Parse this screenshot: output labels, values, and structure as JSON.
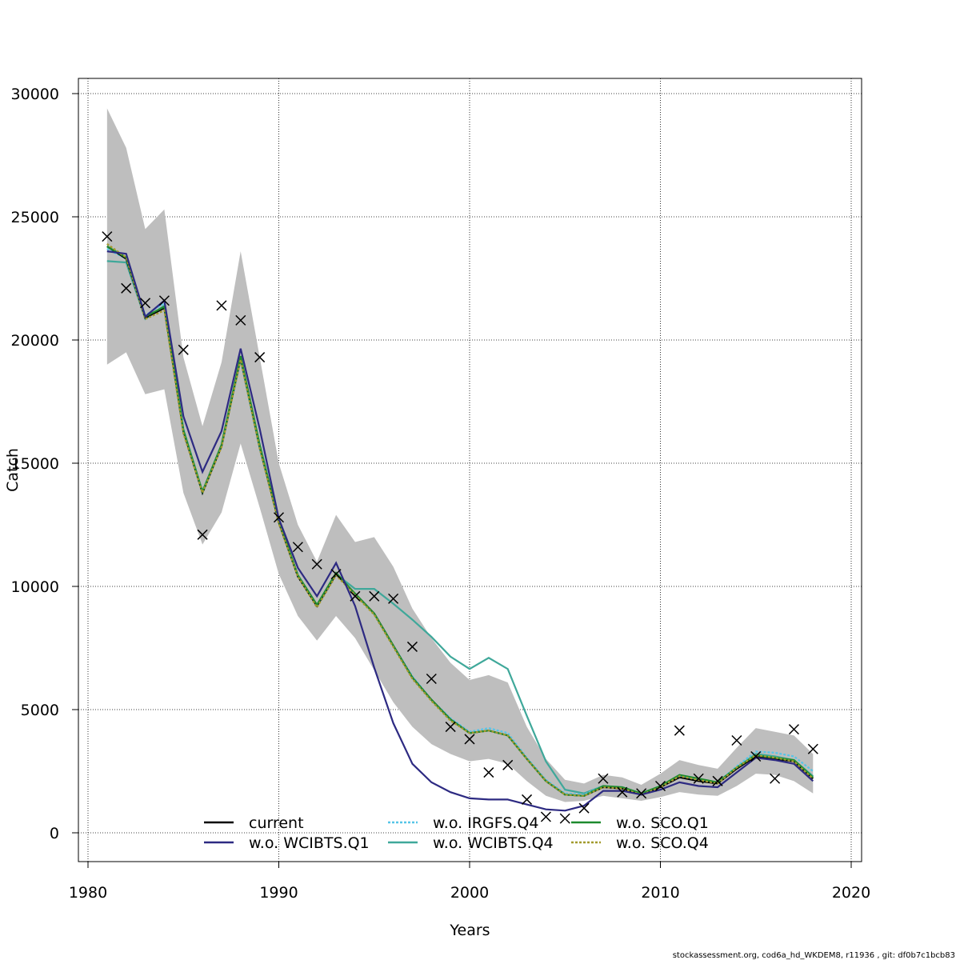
{
  "chart_data": {
    "type": "line",
    "xlabel": "Years",
    "ylabel": "Catch",
    "xlim": [
      1979.5,
      2020.5
    ],
    "ylim": [
      -1200,
      30600
    ],
    "x_ticks": [
      1980,
      1990,
      2000,
      2010,
      2020
    ],
    "y_ticks": [
      0,
      5000,
      10000,
      15000,
      20000,
      25000,
      30000
    ],
    "x_tick_labels": [
      "1980",
      "1990",
      "2000",
      "2010",
      "2020"
    ],
    "y_tick_labels": [
      "0",
      "5000",
      "10000",
      "15000",
      "20000",
      "25000",
      "30000"
    ],
    "grid": true,
    "grid_color": "#000000",
    "band_color": "#bebebe",
    "legend_position": "bottom",
    "years": [
      1981,
      1982,
      1983,
      1984,
      1985,
      1986,
      1987,
      1988,
      1989,
      1990,
      1991,
      1992,
      1993,
      1994,
      1995,
      1996,
      1997,
      1998,
      1999,
      2000,
      2001,
      2002,
      2003,
      2004,
      2005,
      2006,
      2007,
      2008,
      2009,
      2010,
      2011,
      2012,
      2013,
      2014,
      2015,
      2016,
      2017,
      2018
    ],
    "confidence_band": {
      "lower": [
        19000,
        19500,
        17800,
        18000,
        13800,
        11700,
        13000,
        15800,
        13200,
        10500,
        8800,
        7800,
        8800,
        7900,
        6600,
        5300,
        4300,
        3600,
        3200,
        2900,
        3000,
        2800,
        2100,
        1500,
        1250,
        1300,
        1500,
        1400,
        1300,
        1450,
        1650,
        1550,
        1500,
        1900,
        2400,
        2350,
        2100,
        1600
      ],
      "upper": [
        29400,
        27800,
        24500,
        25300,
        19300,
        16500,
        19100,
        23600,
        19300,
        15000,
        12500,
        11000,
        12900,
        11800,
        12000,
        10800,
        9100,
        7900,
        6900,
        6200,
        6400,
        6100,
        4300,
        3000,
        2150,
        2000,
        2350,
        2250,
        1950,
        2400,
        2950,
        2750,
        2600,
        3450,
        4250,
        4100,
        3950,
        3200
      ]
    },
    "observations": {
      "name": "",
      "marker": "x",
      "x": [
        1981,
        1982,
        1983,
        1984,
        1985,
        1986,
        1987,
        1988,
        1989,
        1990,
        1991,
        1992,
        1993,
        1994,
        1995,
        1996,
        1997,
        1998,
        1999,
        2000,
        2001,
        2002,
        2003,
        2004,
        2005,
        2006,
        2007,
        2008,
        2009,
        2010,
        2011,
        2012,
        2013,
        2014,
        2015,
        2016,
        2017,
        2018
      ],
      "y": [
        24200,
        22100,
        21500,
        21600,
        19600,
        12100,
        21400,
        20800,
        19300,
        12800,
        11600,
        10900,
        10500,
        9600,
        9600,
        9500,
        7550,
        6250,
        4300,
        3800,
        2450,
        2750,
        1350,
        650,
        580,
        1000,
        2200,
        1650,
        1600,
        1900,
        4150,
        2200,
        2100,
        3750,
        3100,
        2200,
        4200,
        3400
      ]
    },
    "series": [
      {
        "name": "current",
        "color": "#000000",
        "dash": "solid",
        "values": [
          23800,
          23300,
          20900,
          21300,
          16300,
          13800,
          15700,
          19300,
          15700,
          12600,
          10400,
          9200,
          10500,
          9700,
          8900,
          7600,
          6300,
          5400,
          4600,
          4050,
          4150,
          3950,
          3000,
          2100,
          1550,
          1500,
          1850,
          1800,
          1550,
          1850,
          2250,
          2100,
          2000,
          2600,
          3100,
          3000,
          2900,
          2200
        ]
      },
      {
        "name": "w.o. WCIBTS.Q1",
        "color": "#2d2a82",
        "dash": "solid",
        "values": [
          23600,
          23500,
          20950,
          21600,
          16900,
          14650,
          16300,
          19650,
          16400,
          12750,
          10750,
          9600,
          10950,
          9200,
          6700,
          4450,
          2800,
          2050,
          1650,
          1400,
          1350,
          1350,
          1150,
          950,
          900,
          1100,
          1700,
          1700,
          1550,
          1750,
          2050,
          1900,
          1850,
          2450,
          3050,
          2950,
          2800,
          2100
        ]
      },
      {
        "name": "w.o. IRGFS.Q4",
        "color": "#56c5e8",
        "dash": "dotted",
        "values": [
          23700,
          23300,
          21000,
          21500,
          16400,
          13850,
          15750,
          19300,
          15800,
          12650,
          10450,
          9200,
          10500,
          9700,
          8900,
          7600,
          6350,
          5400,
          4650,
          4100,
          4250,
          4050,
          3050,
          2150,
          1600,
          1550,
          1900,
          1850,
          1600,
          1900,
          2300,
          2150,
          2050,
          2700,
          3300,
          3250,
          3100,
          2500
        ]
      },
      {
        "name": "w.o. WCIBTS.Q4",
        "color": "#3fa89a",
        "dash": "solid",
        "values": [
          23200,
          23150,
          20850,
          21400,
          16300,
          13800,
          15700,
          19200,
          15600,
          12650,
          10450,
          9250,
          10500,
          9900,
          9900,
          9300,
          8650,
          7950,
          7150,
          6650,
          7100,
          6650,
          4750,
          2900,
          1750,
          1600,
          1900,
          1800,
          1550,
          1850,
          2300,
          2150,
          2050,
          2650,
          3200,
          3100,
          2950,
          2300
        ]
      },
      {
        "name": "w.o. SCO.Q1",
        "color": "#1d8a2e",
        "dash": "solid",
        "values": [
          23800,
          23350,
          20950,
          21350,
          16350,
          13850,
          15750,
          19350,
          15750,
          12650,
          10450,
          9250,
          10550,
          9700,
          8900,
          7600,
          6300,
          5400,
          4600,
          4050,
          4150,
          3950,
          3000,
          2100,
          1550,
          1500,
          1900,
          1850,
          1600,
          1900,
          2350,
          2200,
          2050,
          2650,
          3150,
          3050,
          2950,
          2250
        ]
      },
      {
        "name": "w.o. SCO.Q4",
        "color": "#a39a2e",
        "dash": "dotted",
        "values": [
          23900,
          23350,
          20850,
          21200,
          16200,
          13800,
          15650,
          19200,
          15600,
          12550,
          10400,
          9150,
          10450,
          9650,
          8850,
          7550,
          6250,
          5350,
          4550,
          4050,
          4150,
          3950,
          3000,
          2100,
          1550,
          1500,
          1850,
          1800,
          1550,
          1850,
          2300,
          2150,
          2000,
          2650,
          3150,
          3050,
          2900,
          2200
        ]
      }
    ],
    "footer": "stockassessment.org, cod6a_hd_WKDEM8, r11936 , git: df0b7c1bcb83"
  }
}
